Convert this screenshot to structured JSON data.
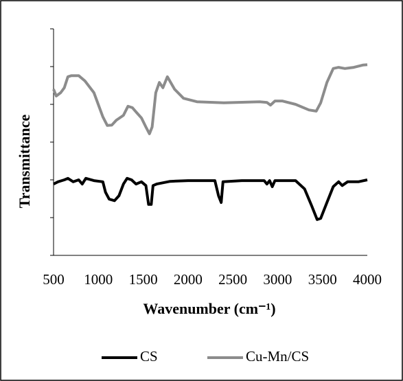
{
  "chart_data": {
    "type": "line",
    "x_label": "Wavenumber (cm⁻¹)",
    "y_label": "Transmittance",
    "xlim": [
      500,
      4000
    ],
    "xticks": [
      500,
      1000,
      1500,
      2000,
      2500,
      3000,
      3500,
      4000
    ],
    "ylim": [
      0,
      6
    ],
    "yticks": [
      0,
      1,
      2,
      3,
      4,
      5,
      6
    ],
    "legend": "bottom",
    "series": [
      {
        "name": "CS",
        "color": "#000000",
        "x": [
          500,
          550,
          620,
          660,
          720,
          780,
          820,
          860,
          950,
          1050,
          1080,
          1120,
          1180,
          1230,
          1280,
          1320,
          1370,
          1420,
          1480,
          1530,
          1560,
          1590,
          1610,
          1650,
          1800,
          2000,
          2300,
          2340,
          2370,
          2390,
          2600,
          2850,
          2880,
          2910,
          2940,
          2970,
          3200,
          3300,
          3380,
          3440,
          3480,
          3550,
          3620,
          3680,
          3720,
          3780,
          3900,
          4000
        ],
        "values": [
          1.89,
          1.95,
          2.0,
          2.04,
          1.95,
          2.0,
          1.89,
          2.04,
          1.98,
          1.95,
          1.67,
          1.49,
          1.45,
          1.58,
          1.89,
          2.04,
          2.0,
          1.89,
          1.95,
          1.85,
          1.35,
          1.35,
          1.85,
          1.89,
          1.96,
          1.98,
          1.98,
          1.58,
          1.4,
          1.95,
          1.98,
          1.98,
          1.89,
          1.98,
          1.82,
          1.98,
          1.98,
          1.76,
          1.31,
          0.95,
          0.98,
          1.4,
          1.82,
          1.95,
          1.85,
          1.95,
          1.95,
          2.0
        ]
      },
      {
        "name": "Cu-Mn/CS",
        "color": "#8c8c8c",
        "x": [
          500,
          530,
          580,
          620,
          660,
          700,
          780,
          850,
          950,
          1050,
          1100,
          1150,
          1200,
          1280,
          1330,
          1380,
          1420,
          1480,
          1530,
          1570,
          1600,
          1640,
          1680,
          1720,
          1770,
          1850,
          1950,
          2100,
          2400,
          2800,
          2880,
          2920,
          2970,
          3050,
          3200,
          3350,
          3430,
          3480,
          3550,
          3620,
          3680,
          3750,
          3850,
          3950,
          4000
        ],
        "values": [
          4.4,
          4.22,
          4.31,
          4.44,
          4.73,
          4.76,
          4.76,
          4.62,
          4.31,
          3.67,
          3.44,
          3.45,
          3.58,
          3.71,
          3.95,
          3.91,
          3.8,
          3.64,
          3.4,
          3.22,
          3.4,
          4.31,
          4.58,
          4.44,
          4.73,
          4.4,
          4.16,
          4.07,
          4.04,
          4.07,
          4.05,
          3.98,
          4.09,
          4.09,
          4.0,
          3.85,
          3.82,
          4.04,
          4.58,
          4.95,
          4.98,
          4.95,
          4.98,
          5.04,
          5.05
        ]
      }
    ]
  }
}
